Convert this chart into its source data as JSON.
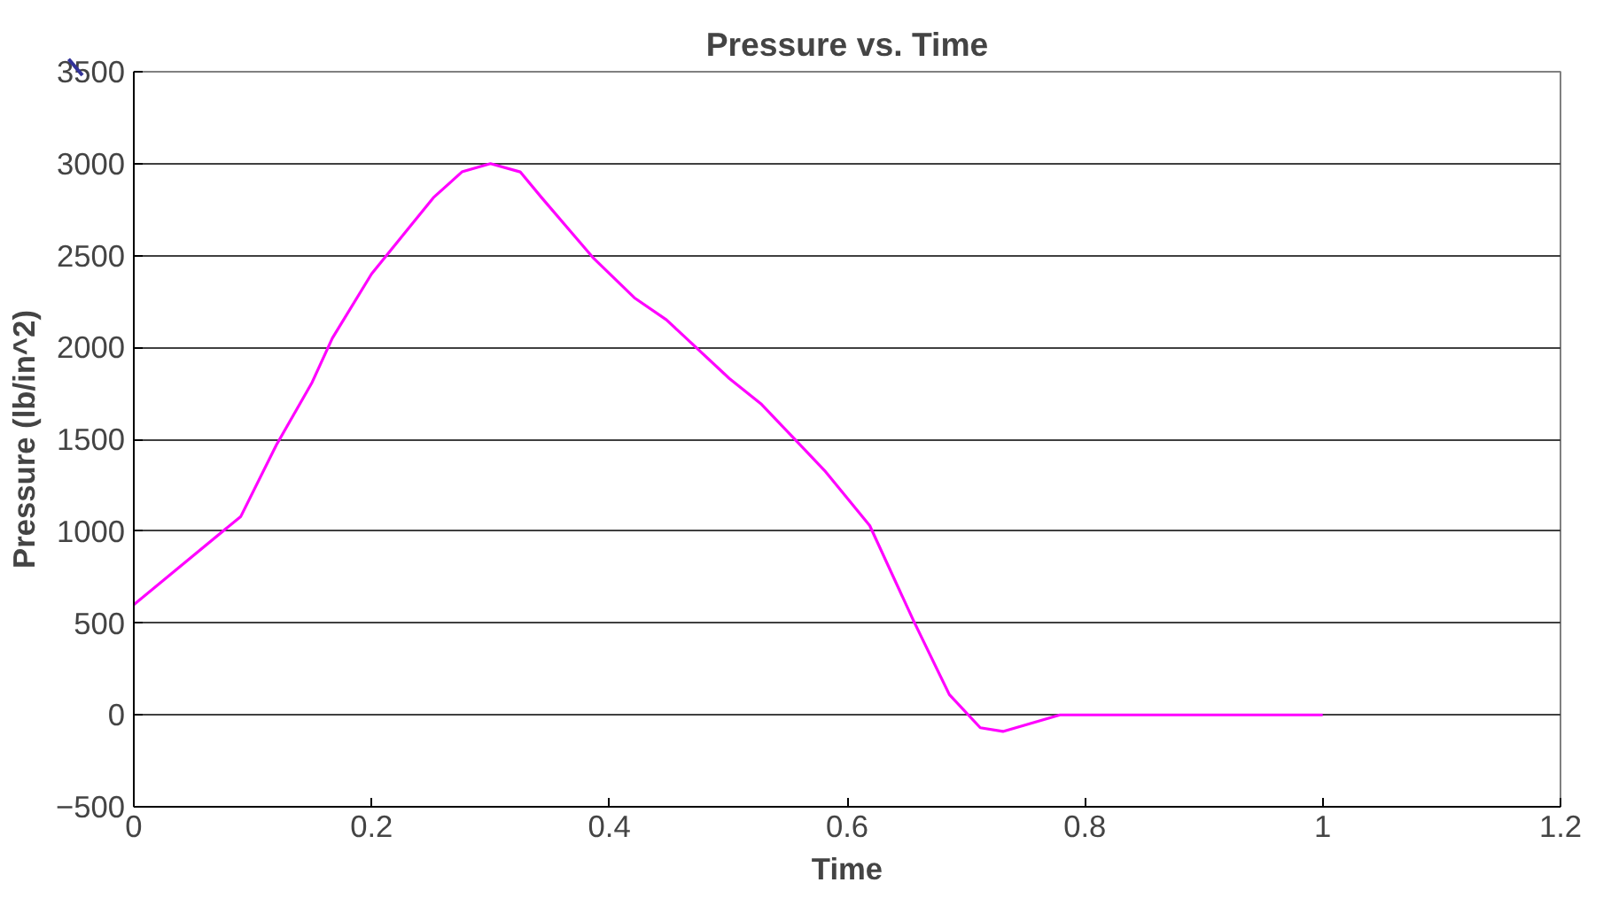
{
  "chart_data": {
    "type": "line",
    "title": "Pressure vs. Time",
    "xlabel": "Time",
    "ylabel": "Pressure (lb/in^2)",
    "xlim": [
      0,
      1.2
    ],
    "xticks": [
      0,
      0.2,
      0.4,
      0.6,
      0.8,
      1,
      1.2
    ],
    "ylim": [
      -500,
      3500
    ],
    "yticks": [
      -500,
      0,
      500,
      1000,
      1500,
      2000,
      2500,
      3000,
      3500
    ],
    "grid": "y",
    "marker": "none",
    "line_style": "solid",
    "series": [
      {
        "color": "#ff00ff",
        "x": [
          0,
          0.09,
          0.12,
          0.15,
          0.167,
          0.2,
          0.252,
          0.276,
          0.3,
          0.325,
          0.343,
          0.386,
          0.421,
          0.448,
          0.501,
          0.528,
          0.581,
          0.619,
          0.656,
          0.686,
          0.712,
          0.731,
          0.779,
          1.0
        ],
        "values": [
          600,
          1080,
          1470,
          1810,
          2050,
          2400,
          2815,
          2955,
          3000,
          2955,
          2815,
          2490,
          2270,
          2150,
          1830,
          1690,
          1330,
          1030,
          510,
          110,
          -70,
          -90,
          0,
          0
        ]
      }
    ]
  }
}
